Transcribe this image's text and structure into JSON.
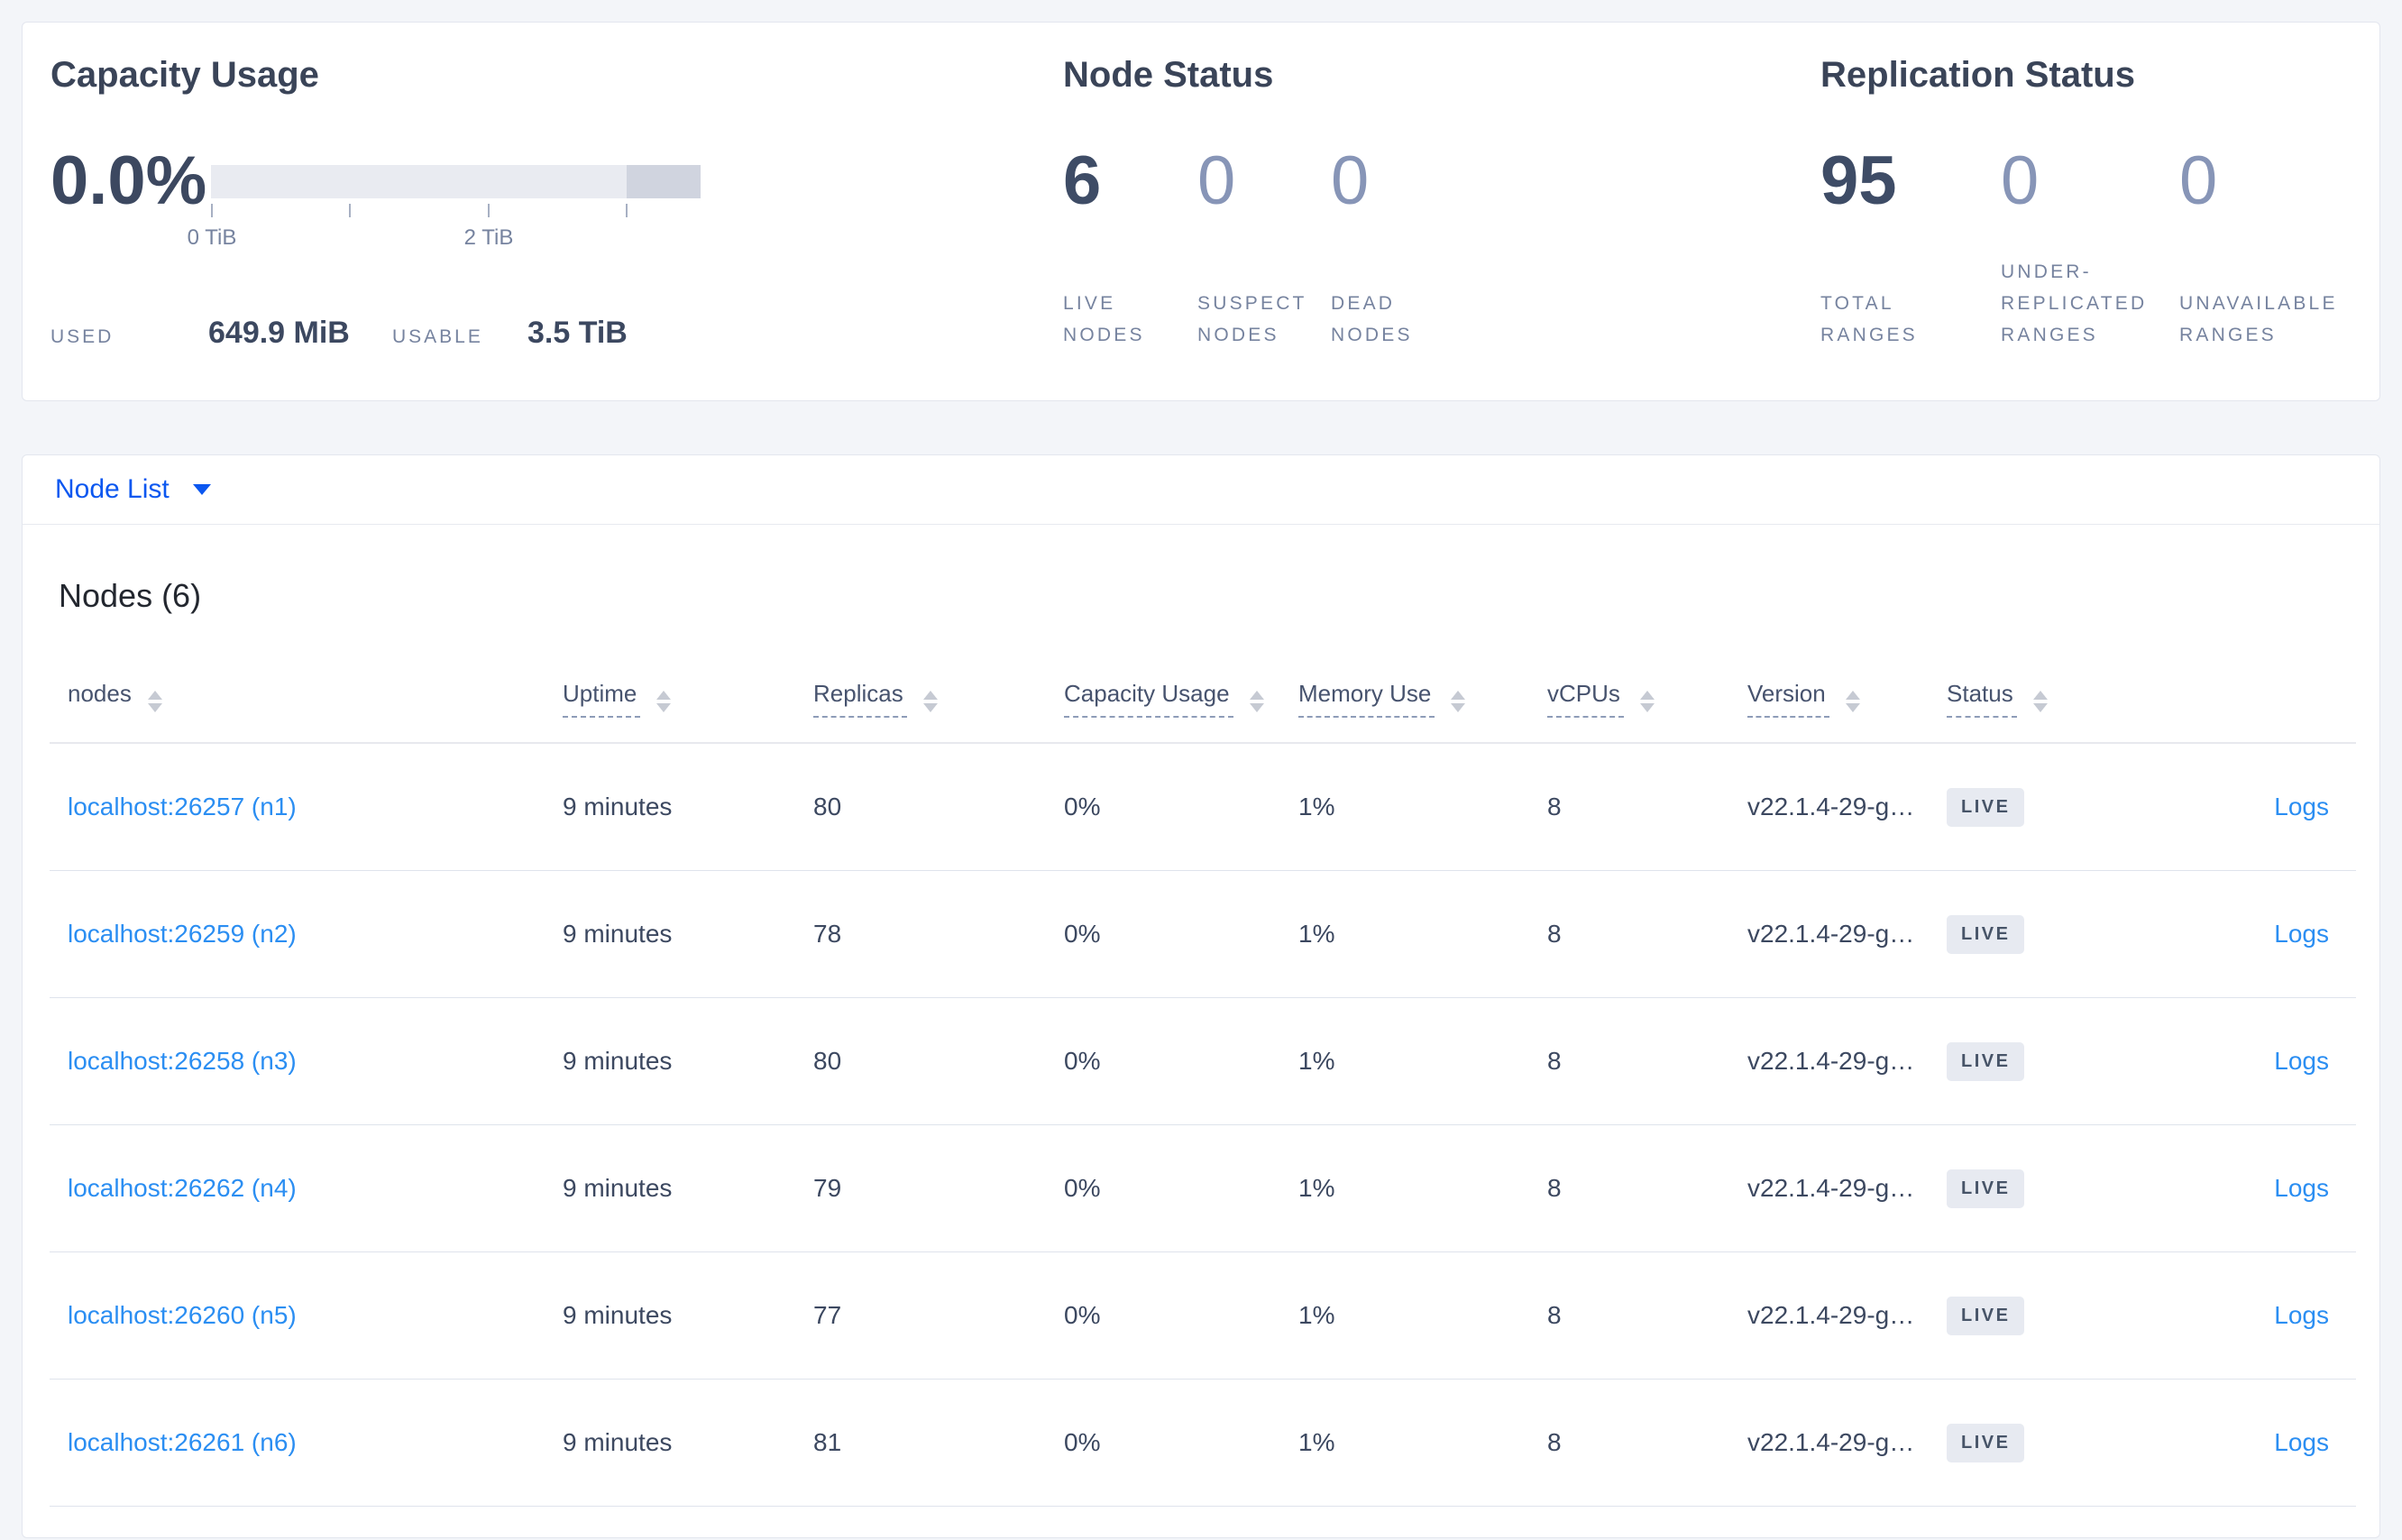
{
  "colors": {
    "accent_blue": "#0b57f0",
    "link_blue": "#2b8ef2",
    "badge_bg": "#e7eaf1",
    "bar_light": "#e9ebf1",
    "bar_dark": "#d0d4df"
  },
  "capacity_usage": {
    "title": "Capacity Usage",
    "percent": "0.0%",
    "tick_labels": [
      "0 TiB",
      "2 TiB"
    ],
    "used_label": "USED",
    "used_value": "649.9 MiB",
    "usable_label": "USABLE",
    "usable_value": "3.5 TiB"
  },
  "node_status": {
    "title": "Node Status",
    "metrics": [
      {
        "value": "6",
        "label": "LIVE\nNODES",
        "dim": false
      },
      {
        "value": "0",
        "label": "SUSPECT\nNODES",
        "dim": true
      },
      {
        "value": "0",
        "label": "DEAD\nNODES",
        "dim": true
      }
    ]
  },
  "replication_status": {
    "title": "Replication Status",
    "metrics": [
      {
        "value": "95",
        "label": "TOTAL\nRANGES",
        "dim": false
      },
      {
        "value": "0",
        "label": "UNDER-\nREPLICATED\nRANGES",
        "dim": true
      },
      {
        "value": "0",
        "label": "UNAVAILABLE\nRANGES",
        "dim": true
      }
    ]
  },
  "node_list": {
    "dropdown_label": "Node List",
    "heading": "Nodes (6)",
    "columns": [
      {
        "label": "nodes",
        "underline": false
      },
      {
        "label": "Uptime",
        "underline": true
      },
      {
        "label": "Replicas",
        "underline": true
      },
      {
        "label": "Capacity Usage",
        "underline": true
      },
      {
        "label": "Memory Use",
        "underline": true
      },
      {
        "label": "vCPUs",
        "underline": true
      },
      {
        "label": "Version",
        "underline": true
      },
      {
        "label": "Status",
        "underline": true
      },
      {
        "label": "",
        "underline": false
      }
    ],
    "rows": [
      {
        "node": "localhost:26257 (n1)",
        "uptime": "9 minutes",
        "replicas": "80",
        "capacity": "0%",
        "memory": "1%",
        "vcpus": "8",
        "version": "v22.1.4-29-g…",
        "status": "LIVE",
        "logs": "Logs"
      },
      {
        "node": "localhost:26259 (n2)",
        "uptime": "9 minutes",
        "replicas": "78",
        "capacity": "0%",
        "memory": "1%",
        "vcpus": "8",
        "version": "v22.1.4-29-g…",
        "status": "LIVE",
        "logs": "Logs"
      },
      {
        "node": "localhost:26258 (n3)",
        "uptime": "9 minutes",
        "replicas": "80",
        "capacity": "0%",
        "memory": "1%",
        "vcpus": "8",
        "version": "v22.1.4-29-g…",
        "status": "LIVE",
        "logs": "Logs"
      },
      {
        "node": "localhost:26262 (n4)",
        "uptime": "9 minutes",
        "replicas": "79",
        "capacity": "0%",
        "memory": "1%",
        "vcpus": "8",
        "version": "v22.1.4-29-g…",
        "status": "LIVE",
        "logs": "Logs"
      },
      {
        "node": "localhost:26260 (n5)",
        "uptime": "9 minutes",
        "replicas": "77",
        "capacity": "0%",
        "memory": "1%",
        "vcpus": "8",
        "version": "v22.1.4-29-g…",
        "status": "LIVE",
        "logs": "Logs"
      },
      {
        "node": "localhost:26261 (n6)",
        "uptime": "9 minutes",
        "replicas": "81",
        "capacity": "0%",
        "memory": "1%",
        "vcpus": "8",
        "version": "v22.1.4-29-g…",
        "status": "LIVE",
        "logs": "Logs"
      }
    ]
  }
}
